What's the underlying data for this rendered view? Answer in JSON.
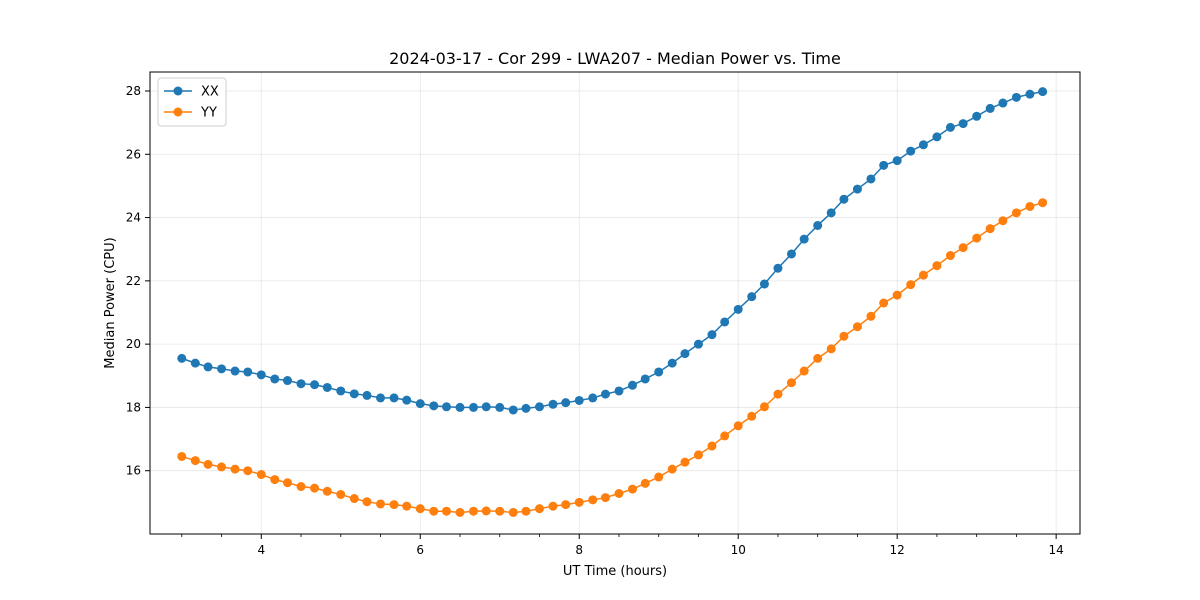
{
  "chart_data": {
    "type": "line",
    "title": "2024-03-17 - Cor 299 - LWA207 - Median Power vs. Time",
    "xlabel": "UT Time (hours)",
    "ylabel": "Median Power (CPU)",
    "xlim": [
      2.6,
      14.3
    ],
    "ylim": [
      14.0,
      28.6
    ],
    "xticks": [
      4,
      6,
      8,
      10,
      12,
      14
    ],
    "yticks": [
      16,
      18,
      20,
      22,
      24,
      26,
      28
    ],
    "grid": true,
    "legend_position": "upper-left",
    "x": [
      3.0,
      3.17,
      3.33,
      3.5,
      3.67,
      3.83,
      4.0,
      4.17,
      4.33,
      4.5,
      4.67,
      4.83,
      5.0,
      5.17,
      5.33,
      5.5,
      5.67,
      5.83,
      6.0,
      6.17,
      6.33,
      6.5,
      6.67,
      6.83,
      7.0,
      7.17,
      7.33,
      7.5,
      7.67,
      7.83,
      8.0,
      8.17,
      8.33,
      8.5,
      8.67,
      8.83,
      9.0,
      9.17,
      9.33,
      9.5,
      9.67,
      9.83,
      10.0,
      10.17,
      10.33,
      10.5,
      10.67,
      10.83,
      11.0,
      11.17,
      11.33,
      11.5,
      11.67,
      11.83,
      12.0,
      12.17,
      12.33,
      12.5,
      12.67,
      12.83,
      13.0,
      13.17,
      13.33,
      13.5,
      13.67,
      13.83
    ],
    "series": [
      {
        "name": "XX",
        "color": "#1f77b4",
        "values": [
          19.55,
          19.4,
          19.28,
          19.22,
          19.15,
          19.12,
          19.03,
          18.9,
          18.85,
          18.75,
          18.72,
          18.63,
          18.52,
          18.43,
          18.38,
          18.3,
          18.3,
          18.23,
          18.12,
          18.05,
          18.02,
          18.0,
          18.0,
          18.02,
          18.0,
          17.92,
          17.97,
          18.02,
          18.1,
          18.15,
          18.22,
          18.3,
          18.42,
          18.52,
          18.7,
          18.9,
          19.12,
          19.4,
          19.7,
          20.0,
          20.3,
          20.7,
          21.1,
          21.5,
          21.9,
          22.4,
          22.85,
          23.32,
          23.75,
          24.15,
          24.58,
          24.9,
          25.22,
          25.65,
          25.8,
          26.1,
          26.3,
          26.55,
          26.85,
          26.97,
          27.2,
          27.45,
          27.62,
          27.8,
          27.9,
          27.98
        ]
      },
      {
        "name": "YY",
        "color": "#ff7f0e",
        "values": [
          16.45,
          16.32,
          16.2,
          16.12,
          16.05,
          16.0,
          15.88,
          15.72,
          15.62,
          15.5,
          15.45,
          15.35,
          15.25,
          15.12,
          15.02,
          14.95,
          14.93,
          14.88,
          14.8,
          14.72,
          14.72,
          14.68,
          14.72,
          14.73,
          14.72,
          14.68,
          14.72,
          14.8,
          14.88,
          14.93,
          15.0,
          15.08,
          15.15,
          15.28,
          15.42,
          15.6,
          15.8,
          16.05,
          16.27,
          16.5,
          16.78,
          17.1,
          17.42,
          17.72,
          18.02,
          18.42,
          18.78,
          19.15,
          19.55,
          19.85,
          20.25,
          20.55,
          20.88,
          21.3,
          21.55,
          21.88,
          22.18,
          22.48,
          22.8,
          23.05,
          23.35,
          23.65,
          23.9,
          24.15,
          24.35,
          24.47
        ]
      }
    ]
  }
}
